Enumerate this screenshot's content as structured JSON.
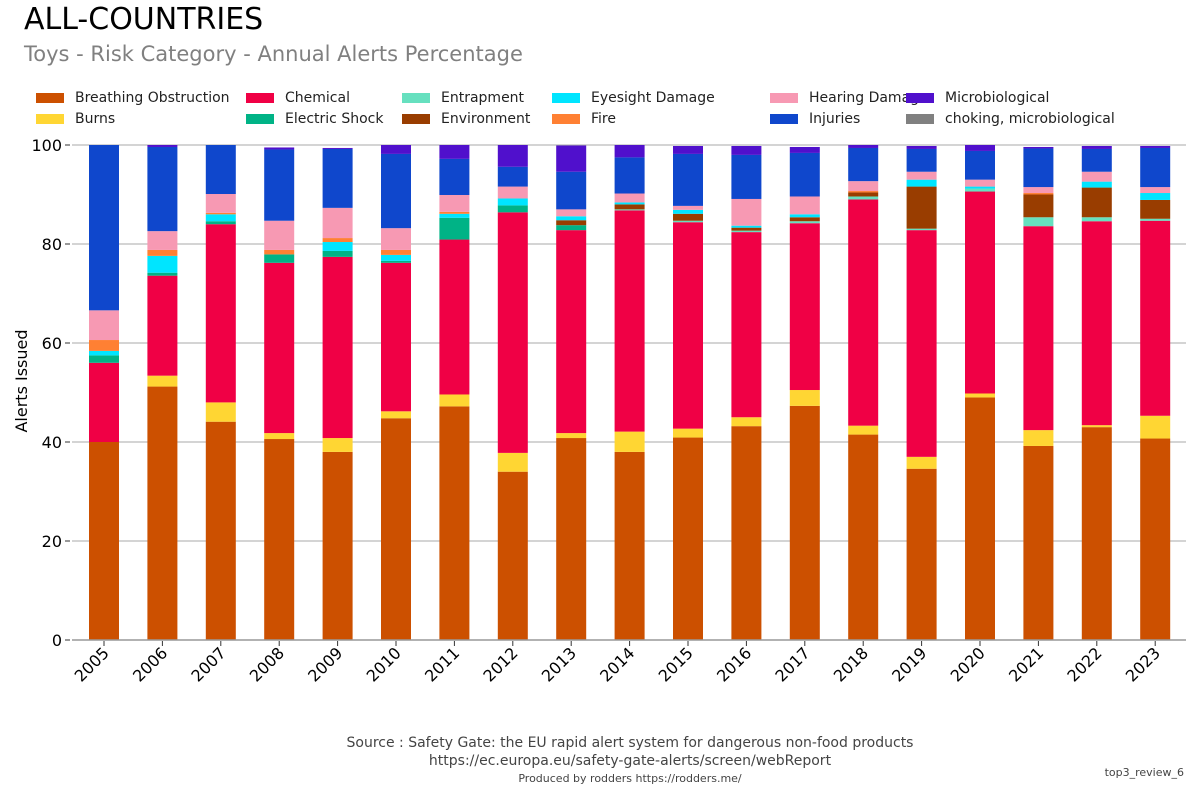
{
  "header": {
    "title": "ALL-COUNTRIES",
    "subtitle": "Toys - Risk Category - Annual Alerts Percentage"
  },
  "footer": {
    "source": "Source : Safety Gate: the EU rapid alert system for dangerous non-food products",
    "url": "https://ec.europa.eu/safety-gate-alerts/screen/webReport",
    "credit": "Produced by rodders https://rodders.me/",
    "tag": "top3_review_6"
  },
  "chart_data": {
    "type": "bar",
    "stacked": true,
    "title": "ALL-COUNTRIES",
    "subtitle": "Toys - Risk Category - Annual Alerts Percentage",
    "xlabel": "",
    "ylabel": "Alerts Issued",
    "ylim": [
      0,
      100
    ],
    "yticks": [
      0,
      20,
      40,
      60,
      80,
      100
    ],
    "grid": true,
    "legend_position": "top",
    "categories": [
      "2005",
      "2006",
      "2007",
      "2008",
      "2009",
      "2010",
      "2011",
      "2012",
      "2013",
      "2014",
      "2015",
      "2016",
      "2017",
      "2018",
      "2019",
      "2020",
      "2021",
      "2022",
      "2023"
    ],
    "series": [
      {
        "name": "Breathing Obstruction",
        "color": "#cc5000",
        "values": [
          40.0,
          51.2,
          44.1,
          40.6,
          38.0,
          44.8,
          47.2,
          34.0,
          40.8,
          38.0,
          40.9,
          43.2,
          47.3,
          41.5,
          34.6,
          49.0,
          39.2,
          43.0,
          40.7
        ]
      },
      {
        "name": "Burns",
        "color": "#ffd633",
        "values": [
          0.0,
          2.2,
          3.9,
          1.2,
          2.8,
          1.4,
          2.4,
          3.8,
          1.0,
          4.1,
          1.8,
          1.8,
          3.2,
          1.8,
          2.4,
          0.8,
          3.2,
          0.4,
          4.6
        ]
      },
      {
        "name": "Chemical",
        "color": "#f00045",
        "values": [
          16.0,
          20.2,
          36.0,
          34.4,
          36.6,
          30.0,
          31.3,
          48.6,
          41.0,
          44.7,
          41.7,
          37.4,
          33.7,
          45.7,
          45.8,
          40.8,
          41.2,
          41.2,
          39.4
        ]
      },
      {
        "name": "Electric Shock",
        "color": "#00b386",
        "values": [
          1.5,
          0.6,
          0.6,
          1.7,
          1.2,
          0.4,
          4.4,
          1.4,
          1.0,
          0.0,
          0.0,
          0.0,
          0.0,
          0.0,
          0.0,
          0.0,
          0.0,
          0.0,
          0.0
        ]
      },
      {
        "name": "Entrapment",
        "color": "#66e0bf",
        "values": [
          0.0,
          0.0,
          0.0,
          0.0,
          0.0,
          0.0,
          0.0,
          0.0,
          0.0,
          0.2,
          0.3,
          0.3,
          0.4,
          0.6,
          0.3,
          0.6,
          1.8,
          0.8,
          0.4
        ]
      },
      {
        "name": "Environment",
        "color": "#993d00",
        "values": [
          0.0,
          0.0,
          0.0,
          0.0,
          0.0,
          0.0,
          0.0,
          0.0,
          1.0,
          1.0,
          1.4,
          0.6,
          0.8,
          0.8,
          8.5,
          0.0,
          4.6,
          6.0,
          3.8
        ]
      },
      {
        "name": "Eyesight Damage",
        "color": "#00e5ff",
        "values": [
          0.9,
          3.4,
          1.4,
          0.0,
          1.8,
          1.2,
          0.8,
          1.4,
          0.8,
          0.4,
          0.8,
          0.4,
          0.6,
          0.0,
          1.4,
          0.4,
          0.0,
          1.2,
          1.4
        ]
      },
      {
        "name": "Fire",
        "color": "#ff8033",
        "values": [
          2.2,
          1.2,
          0.3,
          0.9,
          0.8,
          1.0,
          0.4,
          0.0,
          0.0,
          0.0,
          0.0,
          0.0,
          0.0,
          0.3,
          0.0,
          0.0,
          0.3,
          0.0,
          0.0
        ]
      },
      {
        "name": "Hearing Damage",
        "color": "#f799b3",
        "values": [
          6.0,
          3.8,
          3.8,
          5.9,
          6.1,
          4.4,
          3.4,
          2.4,
          1.4,
          1.8,
          0.8,
          5.4,
          3.6,
          2.0,
          1.6,
          1.4,
          1.2,
          2.0,
          1.2
        ]
      },
      {
        "name": "Injuries",
        "color": "#0f47cc",
        "values": [
          33.4,
          17.0,
          9.9,
          14.4,
          11.9,
          15.0,
          7.3,
          4.0,
          7.6,
          7.3,
          10.5,
          8.9,
          8.8,
          6.7,
          4.6,
          5.8,
          7.8,
          4.6,
          7.9
        ]
      },
      {
        "name": "Microbiological",
        "color": "#5010cc",
        "values": [
          0.0,
          0.4,
          0.0,
          0.4,
          0.2,
          1.8,
          2.8,
          4.4,
          5.3,
          2.5,
          1.6,
          1.8,
          1.2,
          0.6,
          0.6,
          1.2,
          0.3,
          0.6,
          0.4
        ]
      },
      {
        "name": "choking, microbiological",
        "color": "#808080",
        "values": [
          0.0,
          0.0,
          0.0,
          0.0,
          0.0,
          0.0,
          0.0,
          0.0,
          0.0,
          0.0,
          0.0,
          0.0,
          0.0,
          0.0,
          0.0,
          0.0,
          0.0,
          0.0,
          0.0
        ]
      }
    ]
  }
}
